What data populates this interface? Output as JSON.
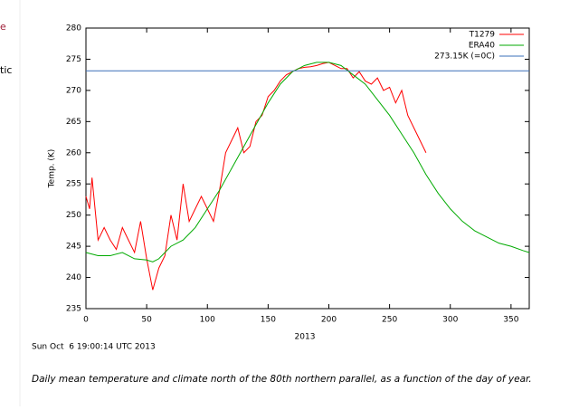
{
  "side_texts": [
    "e",
    "tic"
  ],
  "chart_data": {
    "type": "line",
    "ylabel": "Temp. (K)",
    "xlabel": "2013",
    "timestamp": "Sun Oct  6 19:00:14 UTC 2013",
    "caption": "Daily mean temperature and climate north of the 80th northern parallel, as a function of the day of year.",
    "xlim": [
      0,
      365
    ],
    "ylim": [
      235,
      280
    ],
    "xticks": [
      0,
      50,
      100,
      150,
      200,
      250,
      300,
      350
    ],
    "yticks": [
      235,
      240,
      245,
      250,
      255,
      260,
      265,
      270,
      275,
      280
    ],
    "legend": "top-right",
    "series": [
      {
        "name": "T1279",
        "color": "#ff0000",
        "x": [
          0,
          3,
          5,
          8,
          10,
          15,
          20,
          25,
          30,
          35,
          40,
          45,
          50,
          53,
          55,
          60,
          65,
          70,
          75,
          80,
          85,
          90,
          95,
          100,
          105,
          110,
          115,
          120,
          125,
          130,
          135,
          140,
          145,
          150,
          155,
          160,
          165,
          170,
          175,
          180,
          185,
          190,
          195,
          200,
          205,
          210,
          215,
          220,
          225,
          230,
          235,
          240,
          245,
          250,
          255,
          260,
          265,
          270,
          275,
          280
        ],
        "values": [
          253,
          251,
          256,
          250,
          246,
          248,
          246,
          244.5,
          248,
          246,
          244,
          249,
          243,
          240,
          238,
          241.5,
          243.5,
          250,
          246,
          255,
          249,
          251,
          253,
          251,
          249,
          254,
          260,
          262,
          264,
          260,
          261,
          265,
          266,
          269,
          270,
          271.5,
          272.5,
          273,
          273.5,
          273.7,
          273.8,
          274,
          274.3,
          274.5,
          274,
          273.5,
          273.5,
          272,
          273,
          271.5,
          271,
          272,
          270,
          270.5,
          268,
          270,
          266,
          264,
          262,
          260
        ]
      },
      {
        "name": "ERA40",
        "color": "#00aa00",
        "x": [
          0,
          10,
          20,
          30,
          40,
          50,
          55,
          60,
          70,
          80,
          90,
          100,
          110,
          120,
          130,
          140,
          150,
          160,
          170,
          180,
          190,
          200,
          210,
          220,
          230,
          240,
          250,
          260,
          270,
          280,
          290,
          300,
          310,
          320,
          330,
          340,
          350,
          360,
          365
        ],
        "values": [
          244,
          243.5,
          243.5,
          244,
          243,
          242.8,
          242.5,
          243,
          245,
          246,
          248,
          251,
          254,
          257.5,
          261,
          264.5,
          268,
          271,
          273,
          274,
          274.5,
          274.5,
          274,
          272.5,
          271,
          268.5,
          266,
          263,
          260,
          256.5,
          253.5,
          251,
          249,
          247.5,
          246.5,
          245.5,
          245,
          244.3,
          244
        ]
      },
      {
        "name": "273.15K (=0C)",
        "color": "#3a6fb8",
        "x": [
          0,
          365
        ],
        "values": [
          273.15,
          273.15
        ]
      }
    ]
  }
}
